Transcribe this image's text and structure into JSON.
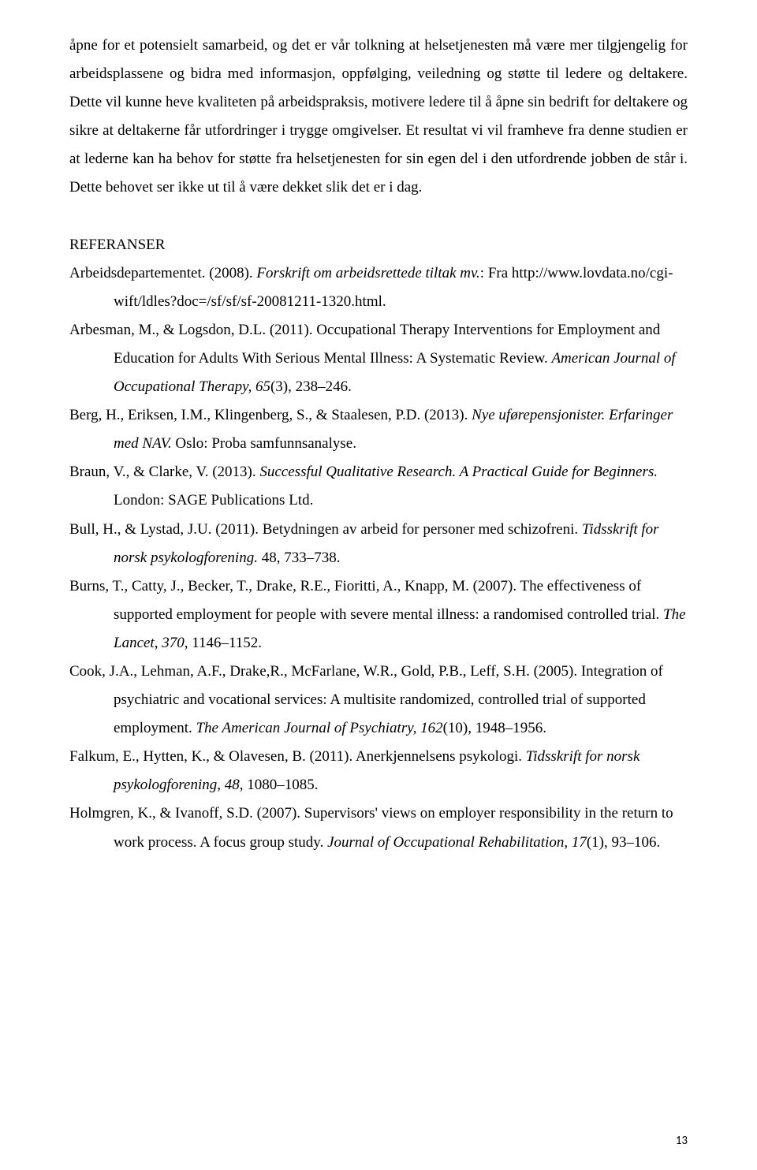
{
  "body_paragraph": "åpne for et potensielt samarbeid, og det er vår tolkning at helsetjenesten må være mer tilgjengelig for arbeidsplassene og bidra med informasjon, oppfølging, veiledning og støtte til ledere og deltakere. Dette vil kunne heve kvaliteten på arbeidspraksis, motivere ledere til å åpne sin bedrift for deltakere og sikre at deltakerne får utfordringer i trygge omgivelser. Et resultat vi vil framheve fra denne studien er at lederne kan ha behov for støtte fra helsetjenesten for sin egen del i den utfordrende jobben de står i. Dette behovet ser ikke ut til å være dekket slik det er i dag.",
  "references_heading": "REFERANSER",
  "references": [
    {
      "pre": "Arbeidsdepartementet. (2008). ",
      "italic": "Forskrift om arbeidsrettede tiltak mv.",
      "post": ": Fra http://www.lovdata.no/cgi-wift/ldles?doc=/sf/sf/sf-20081211-1320.html."
    },
    {
      "pre": "Arbesman, M., & Logsdon, D.L. (2011). Occupational Therapy Interventions for Employment and Education for Adults With Serious Mental Illness: A Systematic Review. ",
      "italic": "American Journal of Occupational Therapy, 65",
      "post": "(3), 238–246."
    },
    {
      "pre": "Berg, H., Eriksen, I.M.,  Klingenberg, S., & Staalesen, P.D. (2013). ",
      "italic": "Nye uførepensjonister. Erfaringer med NAV.",
      "post": " Oslo: Proba samfunnsanalyse."
    },
    {
      "pre": "Braun, V., & Clarke, V. (2013). ",
      "italic": "Successful Qualitative Research. A Practical Guide for Beginners.",
      "post": " London: SAGE Publications Ltd."
    },
    {
      "pre": "Bull, H., & Lystad, J.U. (2011). Betydningen av arbeid for personer med schizofreni. ",
      "italic": "Tidsskrift for norsk psykologforening.",
      "post": " 48, 733–738."
    },
    {
      "pre": "Burns, T., Catty, J., Becker, T., Drake, R.E., Fioritti, A., Knapp, M. (2007). The effectiveness of supported employment for people with severe mental illness: a randomised controlled trial. ",
      "italic": "The Lancet, 370",
      "post": ", 1146–1152."
    },
    {
      "pre": "Cook, J.A., Lehman, A.F., Drake,R., McFarlane, W.R., Gold, P.B., Leff, S.H. (2005). Integration of psychiatric and vocational services: A multisite randomized, controlled trial of supported employment. ",
      "italic": "The American Journal of Psychiatry, 162",
      "post": "(10), 1948–1956."
    },
    {
      "pre": "Falkum, E., Hytten, K., & Olavesen, B. (2011). Anerkjennelsens psykologi. ",
      "italic": "Tidsskrift for norsk psykologforening, 48",
      "post": ", 1080–1085."
    },
    {
      "pre": "Holmgren, K., & Ivanoff, S.D. (2007). Supervisors' views on employer responsibility in the return to work process. A focus group study.  ",
      "italic": "Journal of Occupational Rehabilitation, 17",
      "post": "(1), 93–106."
    }
  ],
  "page_number": "13"
}
